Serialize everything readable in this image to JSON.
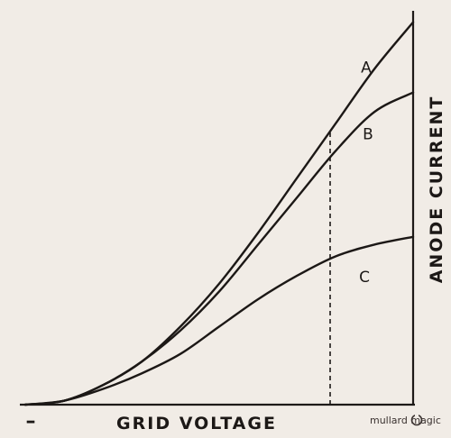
{
  "chart_data": {
    "type": "line",
    "title": "",
    "xlabel": "GRID VOLTAGE",
    "ylabel": "ANODE CURRENT",
    "x_tick_labels": [
      "–"
    ],
    "xlim": [
      0,
      1
    ],
    "ylim": [
      0,
      1
    ],
    "grid": false,
    "series": [
      {
        "name": "A",
        "x": [
          0,
          0.1,
          0.2,
          0.3,
          0.4,
          0.5,
          0.6,
          0.7,
          0.8,
          0.9,
          1.0
        ],
        "y": [
          0,
          0.01,
          0.05,
          0.11,
          0.2,
          0.31,
          0.44,
          0.58,
          0.72,
          0.86,
          0.98
        ]
      },
      {
        "name": "B",
        "x": [
          0,
          0.1,
          0.2,
          0.3,
          0.4,
          0.5,
          0.6,
          0.7,
          0.8,
          0.9,
          1.0
        ],
        "y": [
          0,
          0.01,
          0.05,
          0.11,
          0.19,
          0.29,
          0.41,
          0.53,
          0.65,
          0.75,
          0.8
        ]
      },
      {
        "name": "C",
        "x": [
          0,
          0.1,
          0.2,
          0.3,
          0.4,
          0.5,
          0.6,
          0.7,
          0.8,
          0.9,
          1.0
        ],
        "y": [
          0,
          0.01,
          0.04,
          0.08,
          0.13,
          0.2,
          0.27,
          0.33,
          0.38,
          0.41,
          0.43
        ]
      }
    ],
    "annotations": [
      {
        "type": "vertical-dashed-line",
        "x": 0.8,
        "y_from": 0,
        "y_to": 0.72
      }
    ]
  },
  "watermark": "mullard magic"
}
